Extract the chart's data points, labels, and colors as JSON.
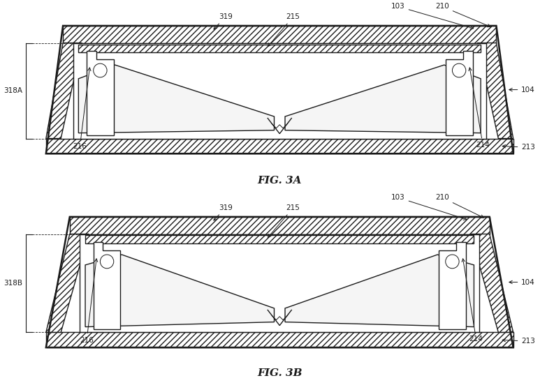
{
  "fig_width": 7.83,
  "fig_height": 5.62,
  "dpi": 100,
  "bg_color": "#ffffff",
  "line_color": "#1a1a1a",
  "hatch_color": "#888888",
  "fig3a_label": "FIG. 3A",
  "fig3b_label": "FIG. 3B",
  "lw_main": 1.0,
  "lw_thick": 1.8,
  "lw_thin": 0.7,
  "fontsize": 7.5
}
